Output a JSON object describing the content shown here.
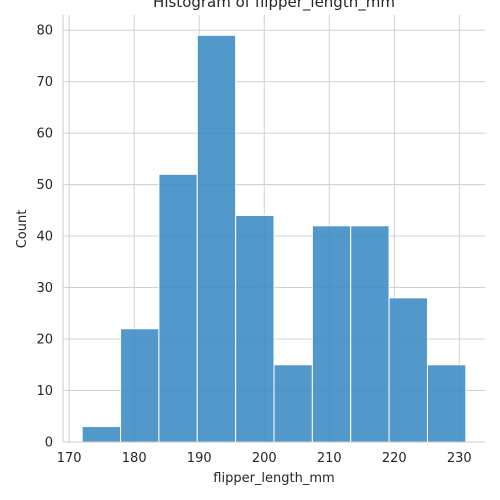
{
  "chart_data": {
    "type": "bar",
    "title": "Histogram of flipper_length_mm",
    "xlabel": "flipper_length_mm",
    "ylabel": "Count",
    "bin_edges": [
      172.0,
      177.9,
      183.8,
      189.7,
      195.6,
      201.5,
      207.4,
      213.3,
      219.2,
      225.1,
      231.0
    ],
    "values": [
      3,
      22,
      52,
      79,
      44,
      15,
      42,
      42,
      28,
      15
    ],
    "xticks": [
      170,
      180,
      190,
      200,
      210,
      220,
      230
    ],
    "yticks": [
      0,
      10,
      20,
      30,
      40,
      50,
      60,
      70,
      80
    ],
    "xlim": [
      169.05,
      233.95
    ],
    "ylim": [
      0,
      82.95
    ],
    "grid": true,
    "bar_color": "#3a8ac4"
  }
}
